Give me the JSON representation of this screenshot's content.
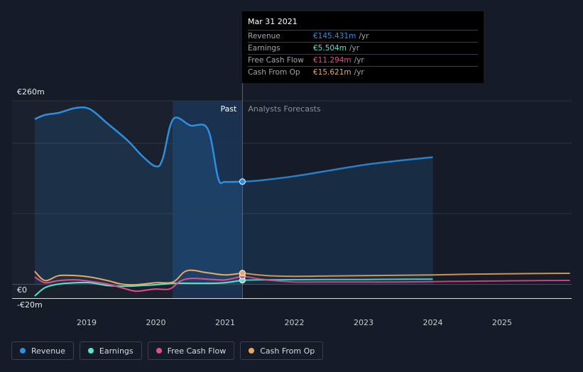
{
  "tooltip": {
    "date": "Mar 31 2021",
    "rows": [
      {
        "label": "Revenue",
        "value": "€145.431m",
        "unit": "/yr",
        "color": "#2d8fe0"
      },
      {
        "label": "Earnings",
        "value": "€5.504m",
        "unit": "/yr",
        "color": "#59e3cf"
      },
      {
        "label": "Free Cash Flow",
        "value": "€11.294m",
        "unit": "/yr",
        "color": "#e24d8c"
      },
      {
        "label": "Cash From Op",
        "value": "€15.621m",
        "unit": "/yr",
        "color": "#e9a95c"
      }
    ]
  },
  "legend": [
    {
      "label": "Revenue",
      "color": "#2d8fe0"
    },
    {
      "label": "Earnings",
      "color": "#59e3cf"
    },
    {
      "label": "Free Cash Flow",
      "color": "#e24d8c"
    },
    {
      "label": "Cash From Op",
      "color": "#e9a95c"
    }
  ],
  "chart_data": {
    "type": "line",
    "y_tick_labels": [
      "€260m",
      "€0",
      "-€20m"
    ],
    "x_tick_labels": [
      "2019",
      "2020",
      "2021",
      "2022",
      "2023",
      "2024",
      "2025"
    ],
    "ylim": [
      -20,
      260
    ],
    "past_label": "Past",
    "forecast_label": "Analysts Forecasts",
    "past_end": 2021.25,
    "series": [
      {
        "name": "Revenue",
        "color": "#2d8fe0",
        "points": [
          [
            2018.25,
            234
          ],
          [
            2018.4,
            240
          ],
          [
            2018.6,
            243
          ],
          [
            2018.85,
            250
          ],
          [
            2019.05,
            248
          ],
          [
            2019.3,
            228
          ],
          [
            2019.6,
            203
          ],
          [
            2019.8,
            182
          ],
          [
            2020.0,
            167
          ],
          [
            2020.1,
            178
          ],
          [
            2020.25,
            234
          ],
          [
            2020.5,
            225
          ],
          [
            2020.75,
            220
          ],
          [
            2020.9,
            150
          ],
          [
            2021.0,
            145
          ],
          [
            2021.25,
            145.4
          ],
          [
            2021.5,
            147
          ],
          [
            2022.0,
            153
          ],
          [
            2022.5,
            161
          ],
          [
            2023.0,
            169
          ],
          [
            2023.5,
            175
          ],
          [
            2024.0,
            180
          ]
        ]
      },
      {
        "name": "Earnings",
        "color": "#59e3cf",
        "points": [
          [
            2018.25,
            -17
          ],
          [
            2018.4,
            -5
          ],
          [
            2018.6,
            0
          ],
          [
            2018.85,
            2
          ],
          [
            2019.05,
            2
          ],
          [
            2019.3,
            -2
          ],
          [
            2019.6,
            -3
          ],
          [
            2019.8,
            -2
          ],
          [
            2020.0,
            -1
          ],
          [
            2020.25,
            1
          ],
          [
            2020.5,
            1
          ],
          [
            2020.75,
            1
          ],
          [
            2021.0,
            2
          ],
          [
            2021.25,
            5.5
          ],
          [
            2021.5,
            6
          ],
          [
            2022.0,
            6.2
          ],
          [
            2022.5,
            6.4
          ],
          [
            2023.0,
            6.5
          ],
          [
            2023.5,
            6.8
          ],
          [
            2024.0,
            7
          ]
        ]
      },
      {
        "name": "Free Cash Flow",
        "color": "#e24d8c",
        "points": [
          [
            2018.25,
            10
          ],
          [
            2018.4,
            2
          ],
          [
            2018.6,
            5
          ],
          [
            2018.85,
            6
          ],
          [
            2019.05,
            4
          ],
          [
            2019.3,
            0
          ],
          [
            2019.5,
            -5
          ],
          [
            2019.7,
            -10
          ],
          [
            2019.9,
            -8
          ],
          [
            2020.0,
            -7
          ],
          [
            2020.2,
            -7
          ],
          [
            2020.35,
            4
          ],
          [
            2020.5,
            8
          ],
          [
            2020.75,
            7
          ],
          [
            2021.0,
            6
          ],
          [
            2021.25,
            11.3
          ],
          [
            2021.6,
            6
          ],
          [
            2022.0,
            3
          ],
          [
            2022.5,
            3
          ],
          [
            2023.0,
            3
          ],
          [
            2023.5,
            3
          ],
          [
            2024.0,
            3.5
          ],
          [
            2024.5,
            4
          ],
          [
            2025.0,
            4.5
          ],
          [
            2025.5,
            5
          ],
          [
            2025.98,
            5.2
          ]
        ]
      },
      {
        "name": "Cash From Op",
        "color": "#e9a95c",
        "points": [
          [
            2018.25,
            18
          ],
          [
            2018.4,
            5
          ],
          [
            2018.6,
            12
          ],
          [
            2018.85,
            12
          ],
          [
            2019.05,
            10
          ],
          [
            2019.3,
            5
          ],
          [
            2019.5,
            0
          ],
          [
            2019.7,
            -1
          ],
          [
            2020.0,
            2
          ],
          [
            2020.25,
            3
          ],
          [
            2020.45,
            19
          ],
          [
            2020.75,
            16
          ],
          [
            2021.0,
            13
          ],
          [
            2021.25,
            15.6
          ],
          [
            2021.6,
            12
          ],
          [
            2022.0,
            11
          ],
          [
            2022.5,
            11.5
          ],
          [
            2023.0,
            12
          ],
          [
            2023.5,
            12.5
          ],
          [
            2024.0,
            13
          ],
          [
            2024.5,
            14
          ],
          [
            2025.0,
            14.5
          ],
          [
            2025.5,
            15
          ],
          [
            2025.98,
            15.3
          ]
        ]
      }
    ]
  }
}
